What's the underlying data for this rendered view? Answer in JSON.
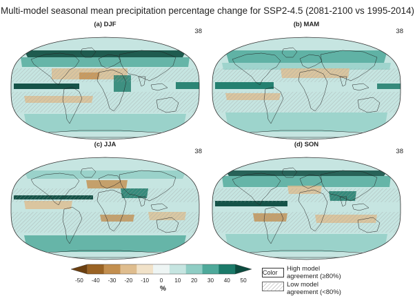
{
  "figure": {
    "title": "Multi-model seasonal mean precipitation percentage change for SSP2-4.5 (2081-2100 vs 1995-2014)"
  },
  "panels": [
    {
      "id": "djf",
      "label": "(a) DJF",
      "model_count": "38"
    },
    {
      "id": "mam",
      "label": "(b) MAM",
      "model_count": "38"
    },
    {
      "id": "jja",
      "label": "(c) JJA",
      "model_count": "38"
    },
    {
      "id": "son",
      "label": "(d) SON",
      "model_count": "38"
    }
  ],
  "colorbar": {
    "unit": "%",
    "ticks": [
      "-50",
      "-40",
      "-30",
      "-20",
      "-10",
      "0",
      "10",
      "20",
      "30",
      "40",
      "50"
    ],
    "colors": [
      "#6b3f10",
      "#9a6324",
      "#c38f4f",
      "#dfbd8e",
      "#f1e2c9",
      "#eef5f4",
      "#c6e5e1",
      "#8fcdc4",
      "#4ea99a",
      "#1b7a69",
      "#0c4b3f"
    ]
  },
  "key": {
    "color_word": "Color",
    "high_agreement": "High model agreement (≥80%)",
    "low_agreement": "Low model agreement (<80%)"
  }
}
